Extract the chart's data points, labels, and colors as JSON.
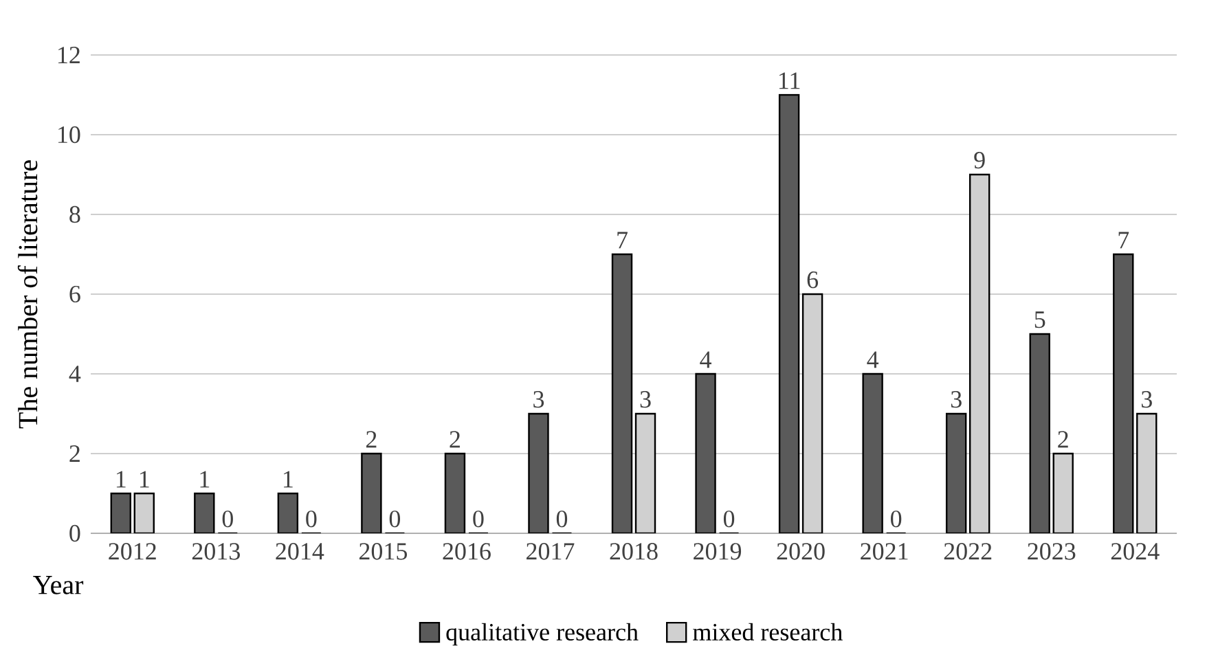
{
  "chart_data": {
    "type": "bar",
    "ylabel": "The number of literature",
    "xlabel": "Year",
    "categories": [
      "2012",
      "2013",
      "2014",
      "2015",
      "2016",
      "2017",
      "2018",
      "2019",
      "2020",
      "2021",
      "2022",
      "2023",
      "2024"
    ],
    "series": [
      {
        "name": "qualitative research",
        "color": "#5a5a5a",
        "values": [
          1,
          1,
          1,
          2,
          2,
          3,
          7,
          4,
          11,
          4,
          3,
          5,
          7
        ]
      },
      {
        "name": "mixed research",
        "color": "#d0d0d0",
        "values": [
          1,
          0,
          0,
          0,
          0,
          0,
          3,
          0,
          6,
          0,
          9,
          2,
          3
        ]
      }
    ],
    "ylim": [
      0,
      12
    ],
    "yticks": [
      0,
      2,
      4,
      6,
      8,
      10,
      12
    ],
    "grid": "y",
    "legend": "bottom",
    "data_labels": true
  }
}
